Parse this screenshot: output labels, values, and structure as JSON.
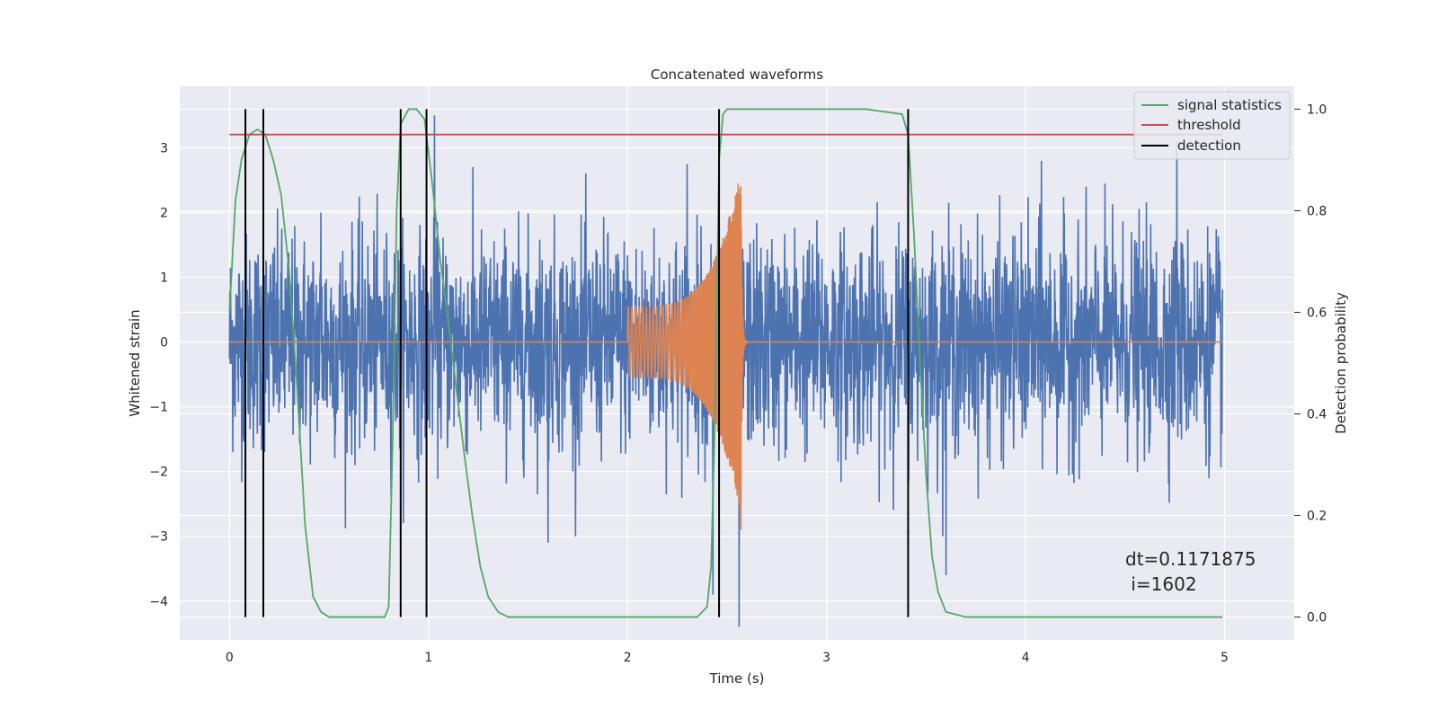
{
  "chart_data": {
    "type": "line",
    "title": "Concatenated waveforms",
    "xlabel": "Time (s)",
    "ylabel": "Whitened strain",
    "y2label": "Detection probability",
    "xlim": [
      -0.25,
      5.35
    ],
    "ylim": [
      -4.6,
      3.95
    ],
    "y2lim": [
      -0.045,
      1.045
    ],
    "x_ticks": [
      0,
      1,
      2,
      3,
      4,
      5
    ],
    "x_tick_labels": [
      "0",
      "1",
      "2",
      "3",
      "4",
      "5"
    ],
    "y_ticks": [
      -4,
      -3,
      -2,
      -1,
      0,
      1,
      2,
      3
    ],
    "y_tick_labels": [
      "−4",
      "−3",
      "−2",
      "−1",
      "0",
      "1",
      "2",
      "3"
    ],
    "y2_ticks": [
      0.0,
      0.2,
      0.4,
      0.6,
      0.8,
      1.0
    ],
    "y2_tick_labels": [
      "0.0",
      "0.2",
      "0.4",
      "0.6",
      "0.8",
      "1.0"
    ],
    "grid": true,
    "legend_position": "top-right",
    "legend": [
      {
        "label": "signal statistics",
        "color": "#55a868"
      },
      {
        "label": "threshold",
        "color": "#c44e52"
      },
      {
        "label": "detection",
        "color": "#000000"
      }
    ],
    "series": [
      {
        "name": "signal statistics",
        "axis": "right",
        "color": "#55a868",
        "x": [
          0.0,
          0.03,
          0.06,
          0.1,
          0.14,
          0.18,
          0.22,
          0.26,
          0.3,
          0.34,
          0.38,
          0.42,
          0.46,
          0.5,
          0.6,
          0.7,
          0.78,
          0.8,
          0.82,
          0.84,
          0.86,
          0.9,
          0.94,
          0.98,
          1.02,
          1.06,
          1.1,
          1.14,
          1.18,
          1.22,
          1.26,
          1.3,
          1.35,
          1.4,
          1.6,
          1.8,
          2.0,
          2.2,
          2.35,
          2.4,
          2.42,
          2.44,
          2.46,
          2.48,
          2.5,
          2.6,
          2.8,
          3.0,
          3.2,
          3.38,
          3.41,
          3.44,
          3.47,
          3.5,
          3.53,
          3.56,
          3.6,
          3.7,
          4.0,
          4.5,
          4.99
        ],
        "y": [
          0.6,
          0.82,
          0.9,
          0.95,
          0.96,
          0.95,
          0.9,
          0.83,
          0.68,
          0.45,
          0.18,
          0.04,
          0.01,
          0.0,
          0.0,
          0.0,
          0.0,
          0.02,
          0.35,
          0.8,
          0.97,
          1.0,
          1.0,
          0.98,
          0.85,
          0.7,
          0.58,
          0.45,
          0.32,
          0.2,
          0.1,
          0.04,
          0.01,
          0.0,
          0.0,
          0.0,
          0.0,
          0.0,
          0.0,
          0.02,
          0.1,
          0.4,
          0.9,
          0.99,
          1.0,
          1.0,
          1.0,
          1.0,
          1.0,
          0.99,
          0.95,
          0.75,
          0.5,
          0.28,
          0.12,
          0.05,
          0.01,
          0.0,
          0.0,
          0.0,
          0.0
        ]
      },
      {
        "name": "threshold",
        "axis": "right",
        "color": "#c44e52",
        "x": [
          0.0,
          4.99
        ],
        "y": [
          0.95,
          0.95
        ]
      }
    ],
    "noise_strain": {
      "axis": "left",
      "color": "#4c72b0",
      "x_range": [
        0.0,
        4.99
      ],
      "typical_envelope": 1.5,
      "extremes": [
        {
          "x": 0.46,
          "y": 2.0
        },
        {
          "x": 1.03,
          "y": 3.5
        },
        {
          "x": 1.6,
          "y": -3.1
        },
        {
          "x": 2.3,
          "y": 2.75
        },
        {
          "x": 2.43,
          "y": -3.9
        },
        {
          "x": 2.56,
          "y": -4.4
        },
        {
          "x": 3.6,
          "y": -3.6
        },
        {
          "x": 4.08,
          "y": 2.8
        },
        {
          "x": 4.76,
          "y": 3.1
        }
      ]
    },
    "injected_waveform": {
      "axis": "left",
      "color": "#dd8452",
      "x_start": 2.0,
      "x_peak": 2.57,
      "start_amplitude": 0.55,
      "peak_amplitude": 2.65,
      "trough_amplitude": -2.9
    },
    "detections": [
      0.08,
      0.17,
      0.86,
      0.99,
      2.46,
      3.41
    ],
    "annotation": {
      "line1": "dt=0.1171875",
      "line2": " i=1602"
    }
  }
}
